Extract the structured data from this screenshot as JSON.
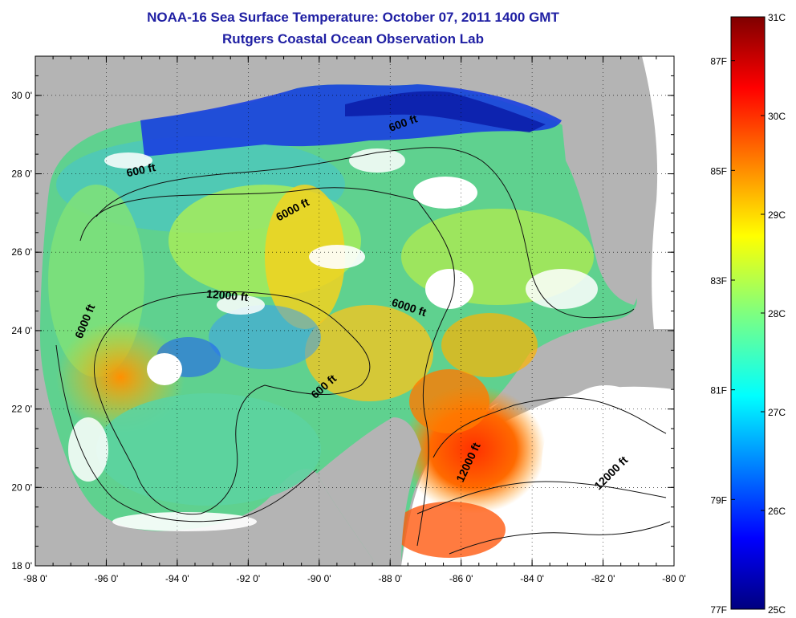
{
  "title_line1": "NOAA-16 Sea Surface Temperature:  October 07, 2011 1400 GMT",
  "title_line2": "Rutgers Coastal Ocean Observation Lab",
  "map": {
    "lon_range": [
      -98,
      -80
    ],
    "lat_range": [
      18,
      31
    ],
    "x_ticks": [
      "-98 0'",
      "-96 0'",
      "-94 0'",
      "-92 0'",
      "-90 0'",
      "-88 0'",
      "-86 0'",
      "-84 0'",
      "-82 0'",
      "-80 0'"
    ],
    "y_ticks": [
      "18 0'",
      "20 0'",
      "22 0'",
      "24 0'",
      "26 0'",
      "28 0'",
      "30 0'"
    ],
    "grid": "dotted",
    "land_color": "#b4b4b4",
    "cloud_color": "#ffffff",
    "contour_labels": [
      {
        "text": "600 ft",
        "lon": -87.6,
        "lat": 29.2,
        "angle": -20
      },
      {
        "text": "600 ft",
        "lon": -95.0,
        "lat": 28.0,
        "angle": -12
      },
      {
        "text": "6000 ft",
        "lon": -90.7,
        "lat": 27.0,
        "angle": -28
      },
      {
        "text": "12000 ft",
        "lon": -92.6,
        "lat": 24.8,
        "angle": 5
      },
      {
        "text": "6000 ft",
        "lon": -96.5,
        "lat": 24.2,
        "angle": -68
      },
      {
        "text": "6000 ft",
        "lon": -87.5,
        "lat": 24.5,
        "angle": 18
      },
      {
        "text": "600 ft",
        "lon": -89.8,
        "lat": 22.5,
        "angle": -42
      },
      {
        "text": "12000 ft",
        "lon": -85.7,
        "lat": 20.6,
        "angle": -65
      },
      {
        "text": "12000 ft",
        "lon": -81.7,
        "lat": 20.3,
        "angle": -45
      }
    ]
  },
  "colorbar": {
    "colors": [
      "#00007f",
      "#0000ff",
      "#007fff",
      "#00ffff",
      "#7fff7f",
      "#ffff00",
      "#ff7f00",
      "#ff0000",
      "#7f0000"
    ],
    "celsius_labels": [
      {
        "text": "31C",
        "value": 31
      },
      {
        "text": "30C",
        "value": 30
      },
      {
        "text": "29C",
        "value": 29
      },
      {
        "text": "28C",
        "value": 28
      },
      {
        "text": "27C",
        "value": 27
      },
      {
        "text": "26C",
        "value": 26
      },
      {
        "text": "25C",
        "value": 25
      }
    ],
    "fahrenheit_labels": [
      {
        "text": "87F",
        "value": 87
      },
      {
        "text": "85F",
        "value": 85
      },
      {
        "text": "83F",
        "value": 83
      },
      {
        "text": "81F",
        "value": 81
      },
      {
        "text": "79F",
        "value": 79
      },
      {
        "text": "77F",
        "value": 77
      }
    ]
  }
}
